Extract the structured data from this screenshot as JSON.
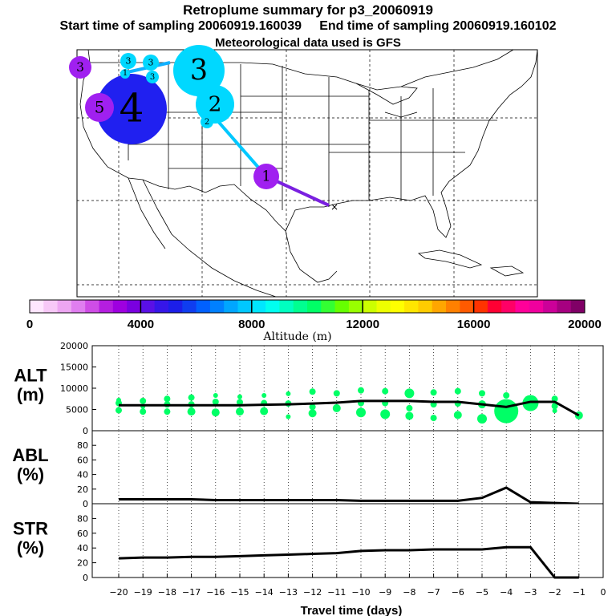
{
  "header": {
    "title": "Retroplume summary for p3_20060919",
    "start": "Start time of sampling 20060919.160039",
    "end": "End time of sampling 20060919.160102",
    "met": "Meteorological data used is GFS"
  },
  "colorbar": {
    "label": "Altitude (m)",
    "range": [
      0,
      20000
    ],
    "ticks": [
      "0",
      "4000",
      "8000",
      "12000",
      "16000",
      "20000"
    ],
    "colors": [
      "#ffe6ff",
      "#f7c8f7",
      "#eda6f2",
      "#e07ef0",
      "#cf4de6",
      "#b51ee0",
      "#9e00e0",
      "#7a00e0",
      "#5a10e6",
      "#3616e8",
      "#1c1ee8",
      "#0f3df0",
      "#0060ff",
      "#0080ff",
      "#00a6ff",
      "#00c8ff",
      "#00e6ff",
      "#00fff0",
      "#00ffc0",
      "#00ff90",
      "#00ff66",
      "#33ff33",
      "#66ff00",
      "#99ff00",
      "#ccff00",
      "#eeff00",
      "#ffff00",
      "#ffe600",
      "#ffcc00",
      "#ffa600",
      "#ff8000",
      "#ff5a00",
      "#ff3300",
      "#ff0033",
      "#ff0066",
      "#ff0099",
      "#f0009e",
      "#cc0099",
      "#a60080",
      "#800066"
    ]
  },
  "map": {
    "release_label": "1",
    "markers": [
      {
        "label": "1",
        "color": "#a020f0",
        "radius": 16
      },
      {
        "label": "2",
        "color": "#00d8ff",
        "radius": 24
      },
      {
        "label": "3",
        "color": "#00d8ff",
        "radius": 32
      },
      {
        "label": "4",
        "color": "#2020f0",
        "radius": 44
      },
      {
        "label": "5",
        "color": "#a020f0",
        "radius": 18
      },
      {
        "label": "3",
        "color": "#00d8ff",
        "radius": 10
      },
      {
        "label": "3",
        "color": "#00d8ff",
        "radius": 10
      },
      {
        "label": "3",
        "color": "#00d8ff",
        "radius": 8
      },
      {
        "label": "1",
        "color": "#00d8ff",
        "radius": 6
      },
      {
        "label": "2",
        "color": "#00d8ff",
        "radius": 8
      },
      {
        "label": "3",
        "color": "#a020f0",
        "radius": 14
      }
    ],
    "path_colors": [
      "#7a20e0",
      "#00c8ff",
      "#00c8ff",
      "#10b0ff"
    ]
  },
  "chart_data": [
    {
      "type": "scatter",
      "name": "ALT",
      "ylabel": [
        "ALT",
        "(m)"
      ],
      "x": [
        -20,
        -19,
        -18,
        -17,
        -16,
        -15,
        -14,
        -13,
        -12,
        -11,
        -10,
        -9,
        -8,
        -7,
        -6,
        -5,
        -4,
        -3,
        -2,
        -1
      ],
      "line": [
        6000,
        6000,
        6000,
        6000,
        6000,
        6000,
        6100,
        6200,
        6400,
        6600,
        7000,
        7000,
        7000,
        6800,
        6800,
        6200,
        5600,
        6800,
        6800,
        3600
      ],
      "points": [
        {
          "x": -20,
          "y": 6500,
          "r": 4
        },
        {
          "x": -20,
          "y": 4800,
          "r": 4
        },
        {
          "x": -20,
          "y": 7200,
          "r": 3
        },
        {
          "x": -19,
          "y": 7000,
          "r": 4
        },
        {
          "x": -19,
          "y": 5700,
          "r": 3
        },
        {
          "x": -19,
          "y": 4500,
          "r": 4
        },
        {
          "x": -18,
          "y": 7500,
          "r": 4
        },
        {
          "x": -18,
          "y": 6200,
          "r": 4
        },
        {
          "x": -18,
          "y": 4500,
          "r": 4
        },
        {
          "x": -17,
          "y": 7800,
          "r": 4
        },
        {
          "x": -17,
          "y": 6200,
          "r": 4
        },
        {
          "x": -17,
          "y": 4500,
          "r": 5
        },
        {
          "x": -16,
          "y": 8300,
          "r": 3
        },
        {
          "x": -16,
          "y": 6800,
          "r": 4
        },
        {
          "x": -16,
          "y": 4300,
          "r": 5
        },
        {
          "x": -15,
          "y": 8000,
          "r": 3
        },
        {
          "x": -15,
          "y": 6700,
          "r": 4
        },
        {
          "x": -15,
          "y": 4500,
          "r": 5
        },
        {
          "x": -14,
          "y": 8300,
          "r": 3
        },
        {
          "x": -14,
          "y": 6500,
          "r": 4
        },
        {
          "x": -14,
          "y": 4600,
          "r": 5
        },
        {
          "x": -13,
          "y": 8700,
          "r": 3
        },
        {
          "x": -13,
          "y": 6400,
          "r": 4
        },
        {
          "x": -13,
          "y": 3300,
          "r": 3
        },
        {
          "x": -12,
          "y": 9200,
          "r": 4
        },
        {
          "x": -12,
          "y": 5600,
          "r": 4
        },
        {
          "x": -12,
          "y": 4100,
          "r": 5
        },
        {
          "x": -11,
          "y": 8800,
          "r": 4
        },
        {
          "x": -11,
          "y": 5300,
          "r": 5
        },
        {
          "x": -10,
          "y": 9500,
          "r": 4
        },
        {
          "x": -10,
          "y": 6500,
          "r": 4
        },
        {
          "x": -10,
          "y": 4300,
          "r": 6
        },
        {
          "x": -9,
          "y": 9300,
          "r": 4
        },
        {
          "x": -9,
          "y": 6500,
          "r": 4
        },
        {
          "x": -9,
          "y": 3900,
          "r": 6
        },
        {
          "x": -8,
          "y": 8800,
          "r": 6
        },
        {
          "x": -8,
          "y": 5300,
          "r": 4
        },
        {
          "x": -8,
          "y": 3500,
          "r": 5
        },
        {
          "x": -7,
          "y": 9000,
          "r": 4
        },
        {
          "x": -7,
          "y": 6200,
          "r": 4
        },
        {
          "x": -7,
          "y": 3000,
          "r": 4
        },
        {
          "x": -6,
          "y": 9300,
          "r": 4
        },
        {
          "x": -6,
          "y": 6400,
          "r": 4
        },
        {
          "x": -6,
          "y": 3700,
          "r": 5
        },
        {
          "x": -5,
          "y": 8800,
          "r": 4
        },
        {
          "x": -5,
          "y": 6200,
          "r": 5
        },
        {
          "x": -5,
          "y": 2800,
          "r": 6
        },
        {
          "x": -4,
          "y": 8300,
          "r": 4
        },
        {
          "x": -4,
          "y": 4600,
          "r": 15
        },
        {
          "x": -3,
          "y": 6500,
          "r": 10
        },
        {
          "x": -2,
          "y": 7500,
          "r": 4
        },
        {
          "x": -2,
          "y": 5800,
          "r": 4
        },
        {
          "x": -2,
          "y": 4700,
          "r": 3
        },
        {
          "x": -1,
          "y": 3600,
          "r": 5
        }
      ],
      "point_color": "#00ff66",
      "ylim": [
        0,
        20000
      ],
      "yticks": [
        0,
        5000,
        10000,
        15000,
        20000
      ]
    },
    {
      "type": "line",
      "name": "ABL",
      "ylabel": [
        "ABL",
        "(%)"
      ],
      "x": [
        -20,
        -19,
        -18,
        -17,
        -16,
        -15,
        -14,
        -13,
        -12,
        -11,
        -10,
        -9,
        -8,
        -7,
        -6,
        -5,
        -4,
        -3,
        -2,
        -1
      ],
      "values": [
        6,
        6,
        6,
        6,
        5,
        5,
        5,
        5,
        5,
        5,
        4,
        4,
        4,
        4,
        4,
        8,
        22,
        2,
        1,
        0
      ],
      "ylim": [
        0,
        100
      ],
      "yticks": [
        0,
        20,
        40,
        60,
        80
      ]
    },
    {
      "type": "line",
      "name": "STR",
      "ylabel": [
        "STR",
        "(%)"
      ],
      "x": [
        -20,
        -19,
        -18,
        -17,
        -16,
        -15,
        -14,
        -13,
        -12,
        -11,
        -10,
        -9,
        -8,
        -7,
        -6,
        -5,
        -4,
        -3,
        -2,
        -1
      ],
      "values": [
        26,
        27,
        27,
        28,
        28,
        29,
        30,
        31,
        32,
        33,
        36,
        37,
        37,
        38,
        38,
        38,
        41,
        41,
        0,
        0
      ],
      "ylim": [
        0,
        100
      ],
      "yticks": [
        0,
        20,
        40,
        60,
        80
      ],
      "xlabel": "Travel time (days)",
      "xticks": [
        -20,
        -19,
        -18,
        -17,
        -16,
        -15,
        -14,
        -13,
        -12,
        -11,
        -10,
        -9,
        -8,
        -7,
        -6,
        -5,
        -4,
        -3,
        -2,
        -1,
        0
      ]
    }
  ]
}
